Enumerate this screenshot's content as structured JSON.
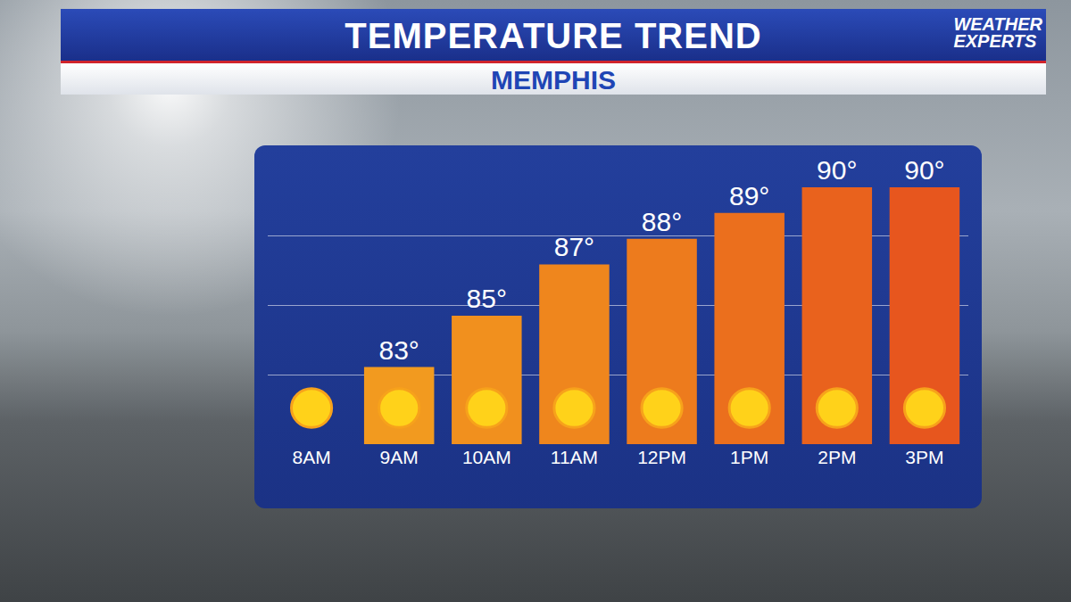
{
  "chart_data": {
    "type": "bar",
    "title": "TEMPERATURE TREND",
    "subtitle": "MEMPHIS",
    "brand": "WEATHER EXPERTS",
    "categories": [
      "8AM",
      "9AM",
      "10AM",
      "11AM",
      "12PM",
      "1PM",
      "2PM",
      "3PM"
    ],
    "values": [
      null,
      83,
      85,
      87,
      88,
      89,
      90,
      90
    ],
    "value_labels": [
      null,
      "83°",
      "85°",
      "87°",
      "88°",
      "89°",
      "90°",
      "90°"
    ],
    "colors": [
      "#f29a1f",
      "#f29a1f",
      "#f1901e",
      "#ef861d",
      "#ed7b1d",
      "#eb6f1d",
      "#e9621d",
      "#e7561e"
    ],
    "ylim": [
      80,
      90.8
    ],
    "yticks": [
      80,
      82.7,
      85.4,
      88.1,
      90.8
    ],
    "grid": true,
    "data_labels": true,
    "tick_labels": "x"
  }
}
